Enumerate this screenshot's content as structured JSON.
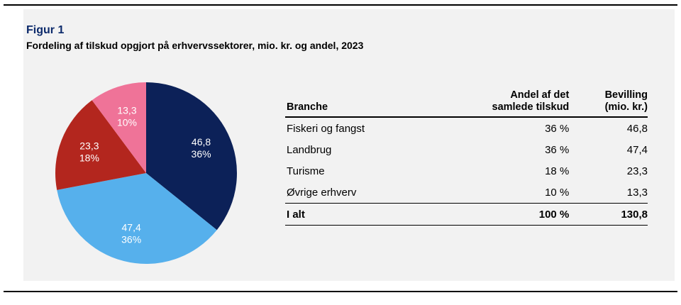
{
  "figure": {
    "label": "Figur 1",
    "title": "Fordeling af tilskud opgjort på erhvervssektorer, mio. kr. og andel, 2023"
  },
  "chart_data": {
    "type": "pie",
    "title": "Fordeling af tilskud opgjort på erhvervssektorer, mio. kr. og andel, 2023",
    "slices": [
      {
        "label": "Fiskeri og fangst",
        "value": 46.8,
        "value_label": "46,8",
        "share_label": "36%",
        "color": "#0c2158"
      },
      {
        "label": "Landbrug",
        "value": 47.4,
        "value_label": "47,4",
        "share_label": "36%",
        "color": "#56b0ec"
      },
      {
        "label": "Turisme",
        "value": 23.3,
        "value_label": "23,3",
        "share_label": "18%",
        "color": "#b3261e"
      },
      {
        "label": "Øvrige erhverv",
        "value": 13.3,
        "value_label": "13,3",
        "share_label": "10%",
        "color": "#ef7398"
      }
    ]
  },
  "table": {
    "headers": {
      "branche": "Branche",
      "andel": [
        "Andel af det",
        "samlede tilskud"
      ],
      "bevilling": [
        "Bevilling",
        "(mio. kr.)"
      ]
    },
    "rows": [
      {
        "branche": "Fiskeri og fangst",
        "andel": "36 %",
        "bevilling": "46,8"
      },
      {
        "branche": "Landbrug",
        "andel": "36 %",
        "bevilling": "47,4"
      },
      {
        "branche": "Turisme",
        "andel": "18 %",
        "bevilling": "23,3"
      },
      {
        "branche": "Øvrige erhverv",
        "andel": "10 %",
        "bevilling": "13,3"
      }
    ],
    "total": {
      "branche": "I alt",
      "andel": "100 %",
      "bevilling": "130,8"
    }
  }
}
